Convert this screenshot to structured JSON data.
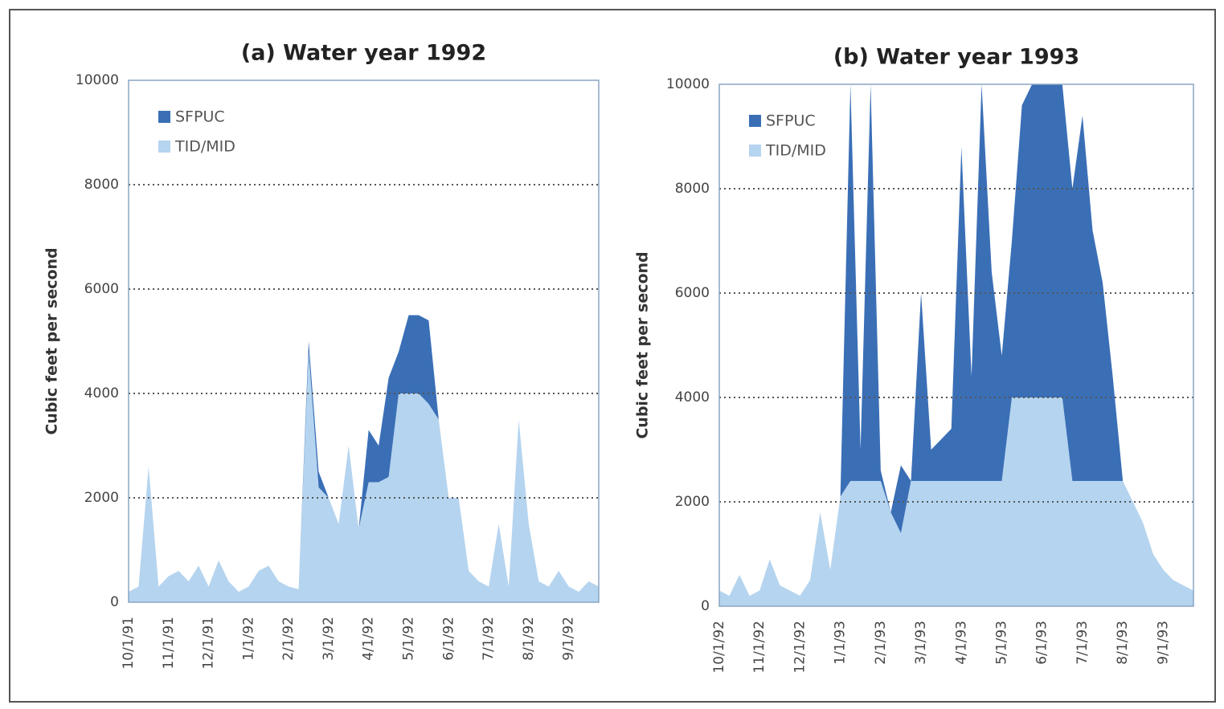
{
  "chart_data": [
    {
      "type": "area",
      "title": "(a) Water year 1992",
      "y_label": "Cubic feet per second",
      "categories": [
        "10/1/91",
        null,
        null,
        null,
        "11/1/91",
        null,
        null,
        null,
        "12/1/91",
        null,
        null,
        null,
        "1/1/92",
        null,
        null,
        null,
        "2/1/92",
        null,
        null,
        null,
        "3/1/92",
        null,
        null,
        null,
        "4/1/92",
        null,
        null,
        null,
        "5/1/92",
        null,
        null,
        null,
        "6/1/92",
        null,
        null,
        null,
        "7/1/92",
        null,
        null,
        null,
        "8/1/92",
        null,
        null,
        null,
        "9/1/92",
        null,
        null,
        null
      ],
      "series": [
        {
          "name": "SFPUC",
          "color": "#3a6fb6",
          "values": [
            0,
            0,
            0,
            0,
            0,
            0,
            0,
            0,
            0,
            0,
            0,
            0,
            0,
            0,
            0,
            0,
            0,
            0,
            200,
            300,
            0,
            0,
            0,
            0,
            1000,
            700,
            1900,
            800,
            1500,
            1500,
            1600,
            0,
            0,
            0,
            0,
            0,
            0,
            0,
            0,
            0,
            0,
            0,
            0,
            0,
            0,
            0,
            0,
            0
          ]
        },
        {
          "name": "TID/MID",
          "color": "#b5d4ef",
          "values": [
            200,
            300,
            2600,
            300,
            500,
            600,
            400,
            700,
            300,
            800,
            400,
            200,
            300,
            600,
            700,
            400,
            300,
            250,
            4800,
            2200,
            2000,
            1500,
            3000,
            1400,
            2300,
            2300,
            2400,
            4000,
            4000,
            4000,
            3800,
            3500,
            2000,
            2000,
            600,
            400,
            300,
            1500,
            300,
            3500,
            1500,
            400,
            300,
            600,
            300,
            200,
            400,
            300
          ]
        }
      ],
      "ylim": [
        0,
        10000
      ],
      "yticks": [
        0,
        2000,
        4000,
        6000,
        8000,
        10000
      ],
      "grid": true,
      "legend": "upper left"
    },
    {
      "type": "area",
      "title": "(b) Water year 1993",
      "y_label": "Cubic feet per second",
      "categories": [
        "10/1/92",
        null,
        null,
        null,
        "11/1/92",
        null,
        null,
        null,
        "12/1/92",
        null,
        null,
        null,
        "1/1/93",
        null,
        null,
        null,
        "2/1/93",
        null,
        null,
        null,
        "3/1/93",
        null,
        null,
        null,
        "4/1/93",
        null,
        null,
        null,
        "5/1/93",
        null,
        null,
        null,
        "6/1/93",
        null,
        null,
        null,
        "7/1/93",
        null,
        null,
        null,
        "8/1/93",
        null,
        null,
        null,
        "9/1/93",
        null,
        null,
        null
      ],
      "series": [
        {
          "name": "SFPUC",
          "color": "#3a6fb6",
          "values": [
            0,
            0,
            0,
            0,
            0,
            0,
            0,
            0,
            0,
            0,
            0,
            0,
            0,
            7600,
            600,
            7600,
            200,
            0,
            1300,
            0,
            3600,
            600,
            800,
            1000,
            6400,
            2000,
            7600,
            4000,
            2400,
            3000,
            5600,
            6000,
            6000,
            6000,
            6000,
            5600,
            7000,
            4800,
            3800,
            2000,
            0,
            0,
            0,
            0,
            0,
            0,
            0,
            0
          ]
        },
        {
          "name": "TID/MID",
          "color": "#b5d4ef",
          "values": [
            300,
            200,
            600,
            200,
            300,
            900,
            400,
            300,
            200,
            500,
            1800,
            700,
            2100,
            2400,
            2400,
            2400,
            2400,
            1800,
            1400,
            2400,
            2400,
            2400,
            2400,
            2400,
            2400,
            2400,
            2400,
            2400,
            2400,
            4000,
            4000,
            4000,
            4000,
            4000,
            4000,
            2400,
            2400,
            2400,
            2400,
            2400,
            2400,
            2000,
            1600,
            1000,
            700,
            500,
            400,
            300
          ]
        }
      ],
      "ylim": [
        0,
        10000
      ],
      "yticks": [
        0,
        2000,
        4000,
        6000,
        8000,
        10000
      ],
      "grid": true,
      "legend": "upper left"
    }
  ]
}
